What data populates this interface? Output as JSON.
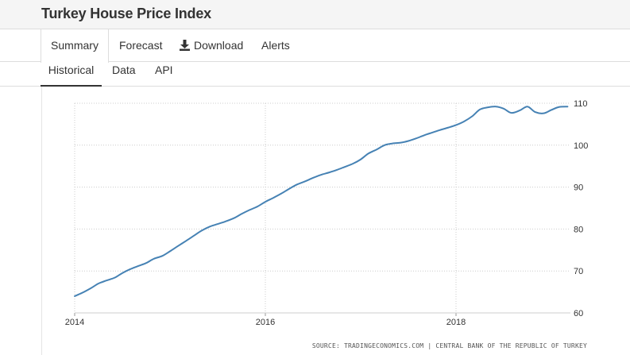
{
  "header": {
    "title": "Turkey House Price Index"
  },
  "main_tabs": [
    {
      "label": "Summary",
      "active": true
    },
    {
      "label": "Forecast",
      "active": false
    },
    {
      "label": "Download",
      "icon": "download-icon",
      "active": false
    },
    {
      "label": "Alerts",
      "active": false
    }
  ],
  "sub_tabs": [
    {
      "label": "Historical",
      "active": true
    },
    {
      "label": "Data",
      "active": false
    },
    {
      "label": "API",
      "active": false
    }
  ],
  "colors": {
    "line": "#4682b4",
    "grid": "#cccccc",
    "tab_border": "#dddddd"
  },
  "chart_data": {
    "type": "line",
    "title": "",
    "xlabel": "",
    "ylabel": "",
    "x_ticks": [
      "2014",
      "2016",
      "2018"
    ],
    "y_ticks": [
      "60",
      "70",
      "80",
      "90",
      "100",
      "110"
    ],
    "xlim": [
      2014.0,
      2019.2
    ],
    "ylim": [
      60,
      110
    ],
    "grid": true,
    "y_axis_side": "right",
    "source": "SOURCE: TRADINGECONOMICS.COM | CENTRAL BANK OF THE REPUBLIC OF TURKEY",
    "series": [
      {
        "x": [
          2014.0,
          2014.08,
          2014.17,
          2014.25,
          2014.33,
          2014.42,
          2014.5,
          2014.58,
          2014.67,
          2014.75,
          2014.83,
          2014.92,
          2015.0,
          2015.08,
          2015.17,
          2015.25,
          2015.33,
          2015.42,
          2015.5,
          2015.58,
          2015.67,
          2015.75,
          2015.83,
          2015.92,
          2016.0,
          2016.08,
          2016.17,
          2016.25,
          2016.33,
          2016.42,
          2016.5,
          2016.58,
          2016.67,
          2016.75,
          2016.83,
          2016.92,
          2017.0,
          2017.08,
          2017.17,
          2017.25,
          2017.33,
          2017.42,
          2017.5,
          2017.58,
          2017.67,
          2017.75,
          2017.83,
          2017.92,
          2018.0,
          2018.08,
          2018.17,
          2018.25,
          2018.33,
          2018.42,
          2018.5,
          2018.58,
          2018.67,
          2018.75,
          2018.83,
          2018.92,
          2019.0,
          2019.08,
          2019.17
        ],
        "values": [
          64.0,
          64.8,
          65.9,
          67.0,
          67.7,
          68.4,
          69.5,
          70.4,
          71.2,
          71.9,
          72.9,
          73.6,
          74.7,
          75.9,
          77.2,
          78.4,
          79.6,
          80.6,
          81.2,
          81.8,
          82.6,
          83.6,
          84.5,
          85.4,
          86.5,
          87.4,
          88.5,
          89.6,
          90.6,
          91.4,
          92.2,
          92.9,
          93.5,
          94.1,
          94.8,
          95.6,
          96.6,
          98.0,
          99.0,
          100.0,
          100.4,
          100.6,
          101.0,
          101.6,
          102.4,
          103.0,
          103.6,
          104.2,
          104.8,
          105.6,
          106.9,
          108.5,
          109.0,
          109.2,
          108.7,
          107.7,
          108.3,
          109.2,
          107.9,
          107.6,
          108.4,
          109.1,
          109.2
        ]
      }
    ]
  }
}
